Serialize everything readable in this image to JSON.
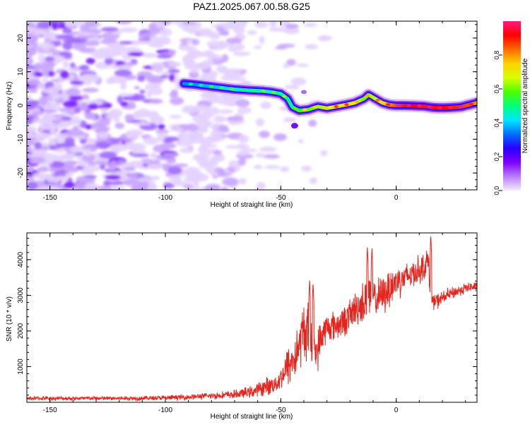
{
  "title": "PAZ1.2025.067.00.58.G25",
  "chart_data": [
    {
      "type": "heatmap",
      "xlabel": "Height of straight line (km)",
      "ylabel": "Frequency (Hz)",
      "xlim": [
        -160,
        35
      ],
      "ylim": [
        -25,
        25
      ],
      "xticks": [
        -150,
        -100,
        -50,
        0
      ],
      "yticks": [
        -20,
        -10,
        0,
        10,
        20
      ],
      "colorbar": {
        "label": "Normalized spectral amplitude",
        "range": [
          0,
          1
        ],
        "ticks": [
          "0.0",
          "0.2",
          "0.4",
          "0.6",
          "0.8"
        ],
        "colormap": [
          "#f6ecff",
          "#b87cff",
          "#7d00ff",
          "#2a00ff",
          "#0070ff",
          "#00e6ff",
          "#00ff7a",
          "#4cff00",
          "#d8ff00",
          "#ffd000",
          "#ff6a00",
          "#ff0000",
          "#ff1a80"
        ]
      },
      "ridge": {
        "x": [
          -92,
          -88,
          -82,
          -76,
          -70,
          -64,
          -58,
          -54,
          -50,
          -47,
          -45,
          -42,
          -38,
          -34,
          -30,
          -26,
          -22,
          -18,
          -14,
          -12,
          -9,
          -6,
          -3,
          0,
          4,
          8,
          12,
          16,
          20,
          24,
          28,
          32,
          35
        ],
        "frequency": [
          6.5,
          6.3,
          5.8,
          5.3,
          4.8,
          4.5,
          4.3,
          4.0,
          3.5,
          2.0,
          -0.5,
          -1.5,
          -1.2,
          -0.3,
          -0.8,
          -0.3,
          0.2,
          0.8,
          2.0,
          3.2,
          2.0,
          0.8,
          0.2,
          0.0,
          0.0,
          -0.1,
          -0.2,
          -0.6,
          -0.7,
          -0.6,
          -0.4,
          0.3,
          0.8
        ],
        "amplitude": [
          0.35,
          0.35,
          0.38,
          0.4,
          0.42,
          0.45,
          0.45,
          0.45,
          0.48,
          0.5,
          0.48,
          0.55,
          0.58,
          0.62,
          0.65,
          0.7,
          0.72,
          0.7,
          0.6,
          0.62,
          0.65,
          0.72,
          0.78,
          0.85,
          0.9,
          0.92,
          0.95,
          0.95,
          0.92,
          0.9,
          0.88,
          0.85,
          0.8
        ]
      }
    },
    {
      "type": "line",
      "xlabel": "Height of straight line (km)",
      "ylabel": "SNR (10 * v/v)",
      "xlim": [
        -160,
        35
      ],
      "ylim": [
        0,
        4750
      ],
      "xticks": [
        -150,
        -100,
        -50,
        0
      ],
      "yticks": [
        1000,
        2000,
        3000,
        4000
      ],
      "color": "#e8231c",
      "envelope": {
        "x": [
          -160,
          -120,
          -100,
          -90,
          -80,
          -70,
          -62,
          -56,
          -52,
          -50,
          -47,
          -44,
          -42,
          -40,
          -38,
          -36,
          -34,
          -32,
          -30,
          -26,
          -22,
          -18,
          -14,
          -12,
          -9,
          -6,
          -3,
          0,
          4,
          8,
          12,
          14,
          15,
          18,
          22,
          26,
          30,
          35
        ],
        "mean": [
          110,
          110,
          125,
          150,
          180,
          220,
          300,
          450,
          520,
          700,
          1000,
          1250,
          1600,
          2050,
          1900,
          1300,
          1500,
          1900,
          2100,
          2150,
          2300,
          2600,
          2800,
          3000,
          2900,
          3000,
          3200,
          3400,
          3500,
          3650,
          3800,
          4000,
          2800,
          2850,
          3000,
          3100,
          3200,
          3250
        ],
        "spread": [
          70,
          70,
          80,
          90,
          110,
          140,
          200,
          300,
          300,
          350,
          700,
          800,
          800,
          1000,
          1100,
          600,
          700,
          600,
          500,
          500,
          500,
          600,
          700,
          900,
          600,
          650,
          700,
          600,
          500,
          500,
          450,
          450,
          300,
          250,
          220,
          200,
          180,
          160
        ]
      },
      "spikes": [
        {
          "x": -37.5,
          "y": 3450
        },
        {
          "x": -36.0,
          "y": 3380
        },
        {
          "x": -12.5,
          "y": 4380
        },
        {
          "x": -10.5,
          "y": 4350
        },
        {
          "x": 15.0,
          "y": 4720
        }
      ]
    }
  ]
}
